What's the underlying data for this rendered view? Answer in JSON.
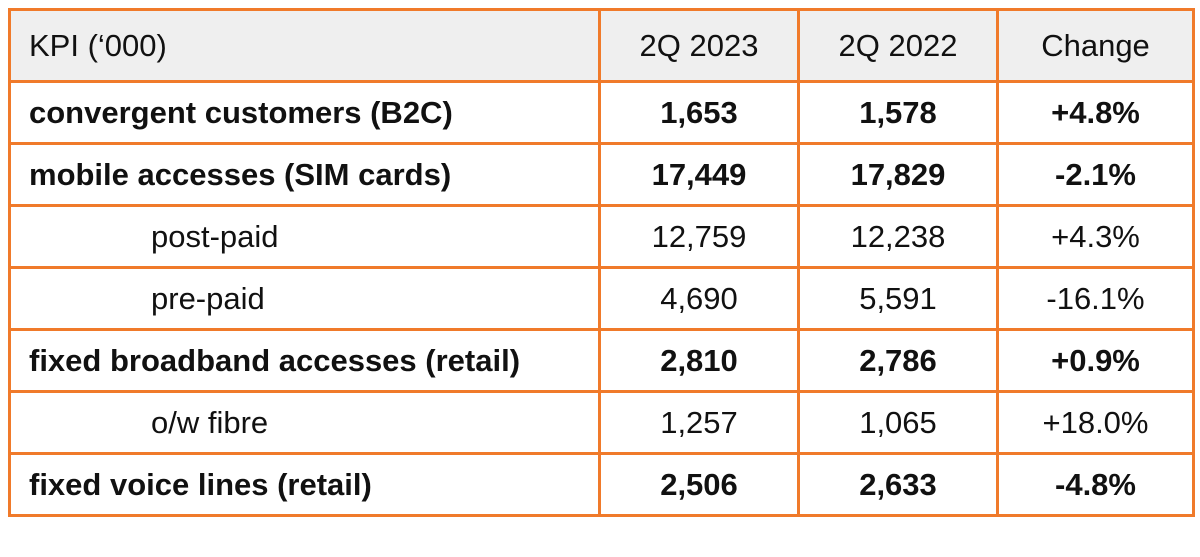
{
  "table": {
    "headers": [
      "KPI (‘000)",
      "2Q 2023",
      "2Q 2022",
      "Change"
    ],
    "rows": [
      {
        "label": "convergent customers (B2C)",
        "q2_2023": "1,653",
        "q2_2022": "1,578",
        "change": "+4.8%",
        "bold": true
      },
      {
        "label": "mobile accesses (SIM cards)",
        "q2_2023": "17,449",
        "q2_2022": "17,829",
        "change": "-2.1%",
        "bold": true
      },
      {
        "label": "post-paid",
        "q2_2023": "12,759",
        "q2_2022": "12,238",
        "change": "+4.3%",
        "bold": false
      },
      {
        "label": "pre-paid",
        "q2_2023": "4,690",
        "q2_2022": "5,591",
        "change": "-16.1%",
        "bold": false
      },
      {
        "label": "fixed broadband accesses (retail)",
        "q2_2023": "2,810",
        "q2_2022": "2,786",
        "change": "+0.9%",
        "bold": true
      },
      {
        "label": "o/w fibre",
        "q2_2023": "1,257",
        "q2_2022": "1,065",
        "change": "+18.0%",
        "bold": false
      },
      {
        "label": "fixed voice lines (retail)",
        "q2_2023": "2,506",
        "q2_2022": "2,633",
        "change": "-4.8%",
        "bold": true
      }
    ]
  },
  "colors": {
    "border": "#f07a2a",
    "header_bg": "#efefef",
    "text": "#111111"
  }
}
